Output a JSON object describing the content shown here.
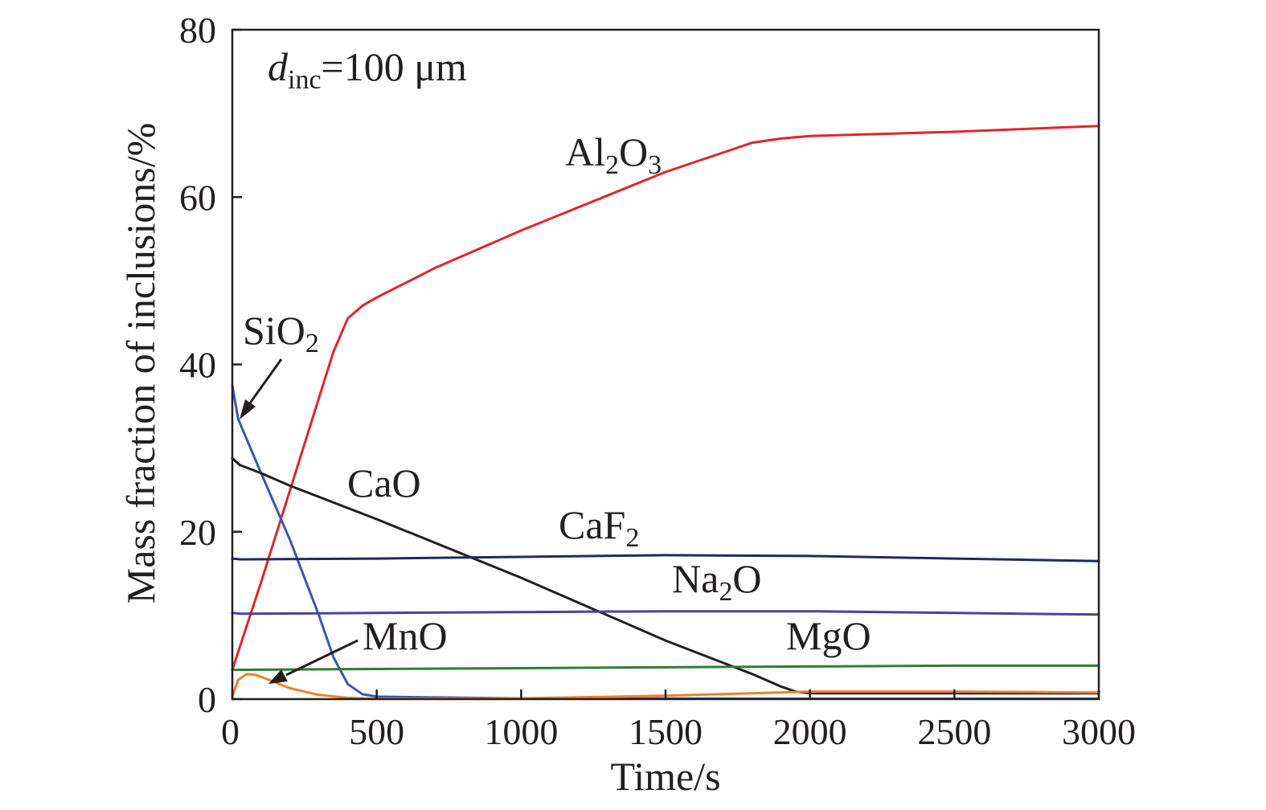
{
  "chart_data": {
    "type": "line",
    "xlabel": "Time/s",
    "ylabel": "Mass fraction of inclusions/%",
    "xlim": [
      0,
      3000
    ],
    "ylim": [
      0,
      80
    ],
    "xticks": [
      0,
      500,
      1000,
      1500,
      2000,
      2500,
      3000
    ],
    "yticks": [
      0,
      20,
      40,
      60,
      80
    ],
    "grid": false,
    "annotation": {
      "main": "d",
      "sub": "inc",
      "rest": "=100 μm"
    },
    "colors": {
      "Al2O3": "#e0262b",
      "SiO2": "#3a55b4",
      "CaO": "#231f20",
      "CaF2": "#1f2a5e",
      "Na2O": "#4b3fa0",
      "MgO": "#2e7d32",
      "MnO": "#f07f2a"
    },
    "series": [
      {
        "key": "Al2O3",
        "name": {
          "main": "Al",
          "sub1": "2",
          "mid": "O",
          "sub2": "3"
        },
        "x": [
          0,
          100,
          200,
          300,
          350,
          400,
          450,
          500,
          700,
          1000,
          1500,
          1800,
          1900,
          2000,
          2500,
          3000
        ],
        "y": [
          3.5,
          14,
          25,
          36,
          41.5,
          45.5,
          47,
          48,
          51.5,
          56,
          63,
          66.5,
          67,
          67.3,
          67.8,
          68.5
        ]
      },
      {
        "key": "SiO2",
        "name": {
          "main": "SiO",
          "sub1": "2"
        },
        "x": [
          0,
          20,
          100,
          200,
          300,
          350,
          400,
          450,
          500,
          700,
          1000,
          2000,
          3000
        ],
        "y": [
          37.5,
          33.5,
          27,
          19,
          10,
          5,
          1.8,
          0.6,
          0.3,
          0.2,
          0.1,
          0.05,
          0.05
        ]
      },
      {
        "key": "CaO",
        "name": {
          "main": "CaO"
        },
        "x": [
          0,
          25,
          100,
          200,
          500,
          1000,
          1500,
          1800,
          1900,
          1950,
          2000,
          3000
        ],
        "y": [
          28.8,
          28,
          27,
          25.5,
          21.5,
          14.5,
          7,
          3,
          1.5,
          0.9,
          0.7,
          0.7
        ]
      },
      {
        "key": "CaF2",
        "name": {
          "main": "CaF",
          "sub1": "2"
        },
        "x": [
          0,
          30,
          500,
          1000,
          1500,
          2000,
          2500,
          3000
        ],
        "y": [
          16.8,
          16.7,
          16.8,
          17,
          17.2,
          17.1,
          16.8,
          16.5
        ]
      },
      {
        "key": "Na2O",
        "name": {
          "main": "Na",
          "sub1": "2",
          "mid": "O"
        },
        "x": [
          0,
          30,
          500,
          1000,
          1500,
          2000,
          2500,
          3000
        ],
        "y": [
          10.3,
          10.2,
          10.3,
          10.4,
          10.5,
          10.5,
          10.3,
          10.1
        ]
      },
      {
        "key": "MgO",
        "name": {
          "main": "MgO"
        },
        "x": [
          0,
          500,
          1000,
          1500,
          2000,
          2500,
          3000
        ],
        "y": [
          3.5,
          3.6,
          3.7,
          3.8,
          3.9,
          4.0,
          4.0
        ]
      },
      {
        "key": "MnO",
        "name": {
          "main": "MnO"
        },
        "x": [
          0,
          20,
          50,
          80,
          120,
          200,
          300,
          400,
          500,
          1000,
          1500,
          1800,
          2000,
          2500,
          3000
        ],
        "y": [
          0.3,
          2.3,
          3.0,
          2.9,
          2.4,
          1.3,
          0.5,
          0.15,
          0.05,
          0.1,
          0.4,
          0.7,
          0.9,
          0.9,
          0.8
        ]
      }
    ]
  }
}
